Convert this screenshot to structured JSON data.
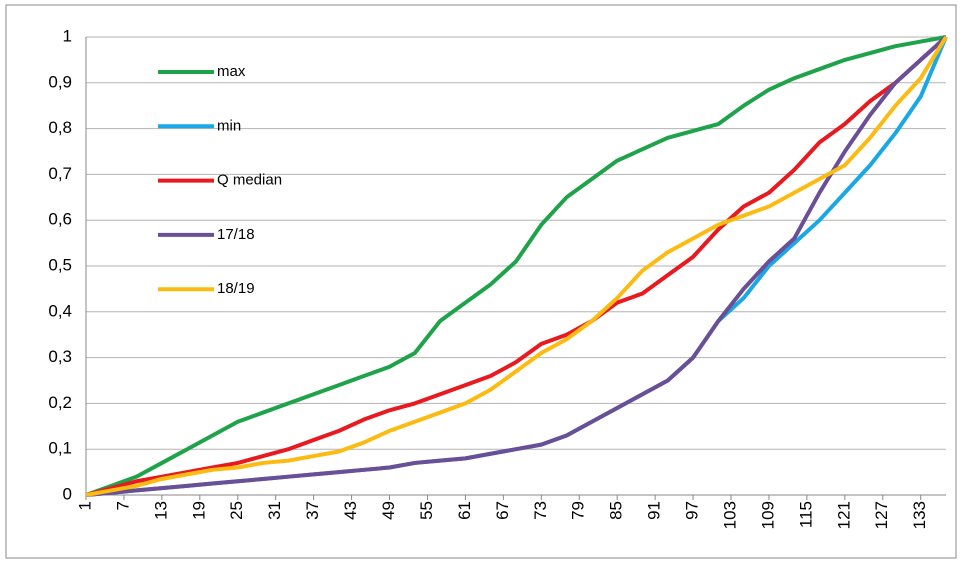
{
  "chart_data": {
    "type": "line",
    "x": [
      1,
      5,
      9,
      13,
      17,
      21,
      25,
      29,
      33,
      37,
      41,
      45,
      49,
      53,
      57,
      61,
      65,
      69,
      73,
      77,
      81,
      85,
      89,
      93,
      97,
      101,
      105,
      109,
      113,
      117,
      121,
      125,
      129,
      133,
      137
    ],
    "xlim": [
      1,
      137
    ],
    "xticks": [
      1,
      7,
      13,
      19,
      25,
      31,
      37,
      43,
      49,
      55,
      61,
      67,
      73,
      79,
      85,
      91,
      97,
      103,
      109,
      115,
      121,
      127,
      133
    ],
    "ylim": [
      0,
      1
    ],
    "yticks": [
      0,
      {
        "value": 0.1,
        "label": "0,1"
      },
      {
        "value": 0.2,
        "label": "0,2"
      },
      {
        "value": 0.3,
        "label": "0,3"
      },
      {
        "value": 0.4,
        "label": "0,4"
      },
      {
        "value": 0.5,
        "label": "0,5"
      },
      {
        "value": 0.6,
        "label": "0,6"
      },
      {
        "value": 0.7,
        "label": "0,7"
      },
      {
        "value": 0.8,
        "label": "0,8"
      },
      {
        "value": 0.9,
        "label": "0,9"
      },
      1
    ],
    "grid": true,
    "legend": "upper-left",
    "series": [
      {
        "name": "max",
        "color": "#1fa34a",
        "values": [
          0,
          0.02,
          0.04,
          0.07,
          0.1,
          0.13,
          0.16,
          0.18,
          0.2,
          0.22,
          0.24,
          0.26,
          0.28,
          0.31,
          0.38,
          0.42,
          0.46,
          0.51,
          0.59,
          0.65,
          0.69,
          0.73,
          0.755,
          0.78,
          0.795,
          0.81,
          0.85,
          0.885,
          0.91,
          0.93,
          0.95,
          0.965,
          0.98,
          0.99,
          1
        ]
      },
      {
        "name": "min",
        "color": "#1aa7e6",
        "values": [
          0,
          0.005,
          0.01,
          0.015,
          0.02,
          0.025,
          0.03,
          0.035,
          0.04,
          0.045,
          0.05,
          0.055,
          0.06,
          0.07,
          0.075,
          0.08,
          0.09,
          0.1,
          0.11,
          0.13,
          0.16,
          0.19,
          0.22,
          0.25,
          0.3,
          0.38,
          0.43,
          0.5,
          0.55,
          0.6,
          0.66,
          0.72,
          0.79,
          0.87,
          1
        ]
      },
      {
        "name": "Q median",
        "color": "#e8191f",
        "values": [
          0,
          0.015,
          0.03,
          0.04,
          0.05,
          0.06,
          0.07,
          0.085,
          0.1,
          0.12,
          0.14,
          0.165,
          0.185,
          0.2,
          0.22,
          0.24,
          0.26,
          0.29,
          0.33,
          0.35,
          0.38,
          0.42,
          0.44,
          0.48,
          0.52,
          0.58,
          0.63,
          0.66,
          0.71,
          0.77,
          0.81,
          0.86,
          0.9,
          0.95,
          1
        ]
      },
      {
        "name": "17/18",
        "color": "#6a4f96",
        "values": [
          0,
          0.005,
          0.01,
          0.015,
          0.02,
          0.025,
          0.03,
          0.035,
          0.04,
          0.045,
          0.05,
          0.055,
          0.06,
          0.07,
          0.075,
          0.08,
          0.09,
          0.1,
          0.11,
          0.13,
          0.16,
          0.19,
          0.22,
          0.25,
          0.3,
          0.38,
          0.45,
          0.51,
          0.56,
          0.66,
          0.75,
          0.83,
          0.9,
          0.95,
          1
        ]
      },
      {
        "name": "18/19",
        "color": "#fbbb12",
        "values": [
          0,
          0.01,
          0.02,
          0.035,
          0.045,
          0.055,
          0.06,
          0.07,
          0.075,
          0.085,
          0.095,
          0.115,
          0.14,
          0.16,
          0.18,
          0.2,
          0.23,
          0.27,
          0.31,
          0.34,
          0.38,
          0.43,
          0.49,
          0.53,
          0.56,
          0.59,
          0.61,
          0.63,
          0.66,
          0.69,
          0.72,
          0.78,
          0.85,
          0.91,
          1
        ]
      }
    ]
  }
}
